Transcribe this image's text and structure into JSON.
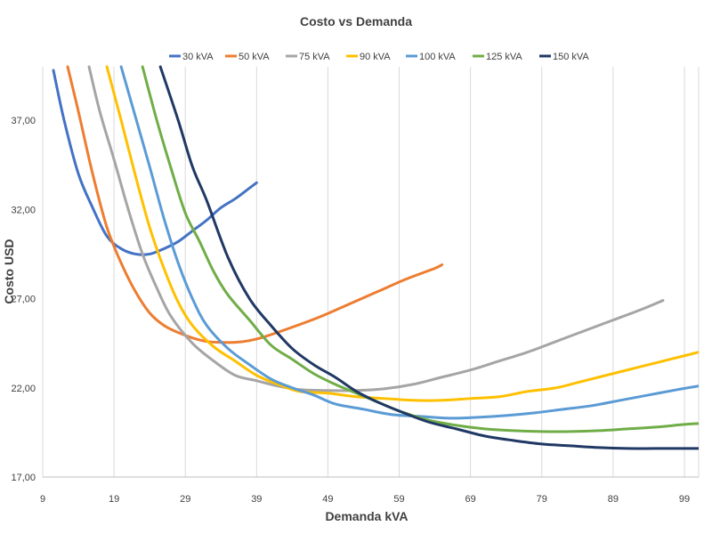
{
  "chart_data": {
    "type": "line",
    "title": "Costo vs Demanda",
    "xlabel": "Demanda kVA",
    "ylabel": "Costo USD",
    "xlim": [
      9,
      101
    ],
    "ylim": [
      17,
      40
    ],
    "x_ticks": [
      "9",
      "19",
      "29",
      "39",
      "49",
      "59",
      "69",
      "79",
      "89",
      "99"
    ],
    "y_ticks": [
      "17,00",
      "22,00",
      "27,00",
      "32,00",
      "37,00"
    ],
    "grid": "vertical",
    "legend_position": "top",
    "series": [
      {
        "name": "30 kVA",
        "color": "#4472C4",
        "points": [
          [
            10.5,
            39.8
          ],
          [
            12,
            37
          ],
          [
            14,
            34
          ],
          [
            16,
            32.1
          ],
          [
            18,
            30.5
          ],
          [
            20,
            29.8
          ],
          [
            22,
            29.5
          ],
          [
            24,
            29.5
          ],
          [
            26,
            29.8
          ],
          [
            28,
            30.2
          ],
          [
            30,
            30.8
          ],
          [
            32,
            31.4
          ],
          [
            34,
            32.1
          ],
          [
            36,
            32.6
          ],
          [
            38,
            33.2
          ],
          [
            39,
            33.5
          ]
        ]
      },
      {
        "name": "50 kVA",
        "color": "#ED7D31",
        "points": [
          [
            12.5,
            40
          ],
          [
            14,
            37.5
          ],
          [
            16,
            34
          ],
          [
            18,
            31
          ],
          [
            20,
            29
          ],
          [
            22,
            27.4
          ],
          [
            24,
            26.2
          ],
          [
            26,
            25.5
          ],
          [
            28,
            25.1
          ],
          [
            30,
            24.8
          ],
          [
            32,
            24.6
          ],
          [
            34,
            24.55
          ],
          [
            36,
            24.55
          ],
          [
            38,
            24.65
          ],
          [
            40,
            24.85
          ],
          [
            44,
            25.4
          ],
          [
            48,
            26
          ],
          [
            52,
            26.7
          ],
          [
            56,
            27.4
          ],
          [
            60,
            28.1
          ],
          [
            64,
            28.7
          ],
          [
            65,
            28.9
          ]
        ]
      },
      {
        "name": "75 kVA",
        "color": "#A5A5A5",
        "points": [
          [
            15.5,
            40
          ],
          [
            17,
            37.5
          ],
          [
            19,
            34.8
          ],
          [
            21,
            32
          ],
          [
            23,
            29.5
          ],
          [
            25,
            27.6
          ],
          [
            27,
            26
          ],
          [
            30,
            24.5
          ],
          [
            33,
            23.5
          ],
          [
            36,
            22.7
          ],
          [
            39,
            22.4
          ],
          [
            42,
            22.1
          ],
          [
            45,
            21.9
          ],
          [
            49,
            21.85
          ],
          [
            53,
            21.85
          ],
          [
            57,
            21.95
          ],
          [
            61,
            22.2
          ],
          [
            65,
            22.6
          ],
          [
            69,
            23
          ],
          [
            73,
            23.5
          ],
          [
            77,
            24
          ],
          [
            81,
            24.6
          ],
          [
            85,
            25.2
          ],
          [
            89,
            25.8
          ],
          [
            93,
            26.4
          ],
          [
            96,
            26.9
          ]
        ]
      },
      {
        "name": "90 kVA",
        "color": "#FFC000",
        "points": [
          [
            18,
            40
          ],
          [
            20,
            37
          ],
          [
            22,
            33.9
          ],
          [
            24,
            31
          ],
          [
            26,
            28.7
          ],
          [
            28,
            26.8
          ],
          [
            30,
            25.5
          ],
          [
            33,
            24.3
          ],
          [
            36,
            23.5
          ],
          [
            39,
            22.7
          ],
          [
            42,
            22.2
          ],
          [
            45,
            21.8
          ],
          [
            49,
            21.7
          ],
          [
            53,
            21.5
          ],
          [
            57,
            21.4
          ],
          [
            61,
            21.3
          ],
          [
            65,
            21.3
          ],
          [
            69,
            21.4
          ],
          [
            73,
            21.5
          ],
          [
            77,
            21.8
          ],
          [
            81,
            22
          ],
          [
            85,
            22.4
          ],
          [
            89,
            22.8
          ],
          [
            93,
            23.2
          ],
          [
            97,
            23.6
          ],
          [
            101,
            24
          ]
        ]
      },
      {
        "name": "100 kVA",
        "color": "#5B9BD5",
        "points": [
          [
            20,
            40
          ],
          [
            22,
            37.2
          ],
          [
            24,
            34.4
          ],
          [
            26,
            31.5
          ],
          [
            28,
            29
          ],
          [
            30,
            27
          ],
          [
            32,
            25.5
          ],
          [
            35,
            24.2
          ],
          [
            38,
            23.3
          ],
          [
            41,
            22.5
          ],
          [
            44,
            22
          ],
          [
            47,
            21.6
          ],
          [
            50,
            21.1
          ],
          [
            54,
            20.8
          ],
          [
            58,
            20.5
          ],
          [
            62,
            20.4
          ],
          [
            66,
            20.3
          ],
          [
            70,
            20.35
          ],
          [
            74,
            20.45
          ],
          [
            78,
            20.6
          ],
          [
            82,
            20.8
          ],
          [
            86,
            21
          ],
          [
            90,
            21.3
          ],
          [
            94,
            21.6
          ],
          [
            98,
            21.9
          ],
          [
            101,
            22.1
          ]
        ]
      },
      {
        "name": "125 kVA",
        "color": "#70AD47",
        "points": [
          [
            23,
            40
          ],
          [
            25,
            37
          ],
          [
            27,
            34.3
          ],
          [
            29,
            31.8
          ],
          [
            31,
            30.2
          ],
          [
            33,
            28.5
          ],
          [
            35,
            27.2
          ],
          [
            38,
            25.8
          ],
          [
            41,
            24.4
          ],
          [
            44,
            23.6
          ],
          [
            47,
            22.8
          ],
          [
            50,
            22.2
          ],
          [
            53,
            21.7
          ],
          [
            56,
            21.2
          ],
          [
            59,
            20.7
          ],
          [
            63,
            20.2
          ],
          [
            67,
            19.9
          ],
          [
            71,
            19.7
          ],
          [
            75,
            19.6
          ],
          [
            79,
            19.55
          ],
          [
            83,
            19.55
          ],
          [
            87,
            19.6
          ],
          [
            91,
            19.7
          ],
          [
            95,
            19.8
          ],
          [
            99,
            19.95
          ],
          [
            101,
            20
          ]
        ]
      },
      {
        "name": "150 kVA",
        "color": "#203864",
        "points": [
          [
            25.5,
            40
          ],
          [
            28,
            37
          ],
          [
            30,
            34.4
          ],
          [
            32,
            32.5
          ],
          [
            35,
            29.3
          ],
          [
            38,
            27
          ],
          [
            41,
            25.5
          ],
          [
            44,
            24.2
          ],
          [
            47,
            23.3
          ],
          [
            50,
            22.6
          ],
          [
            53,
            21.8
          ],
          [
            56,
            21.2
          ],
          [
            59,
            20.7
          ],
          [
            63,
            20.1
          ],
          [
            67,
            19.7
          ],
          [
            71,
            19.3
          ],
          [
            75,
            19.05
          ],
          [
            79,
            18.85
          ],
          [
            83,
            18.75
          ],
          [
            87,
            18.65
          ],
          [
            91,
            18.6
          ],
          [
            95,
            18.6
          ],
          [
            99,
            18.6
          ],
          [
            101,
            18.6
          ]
        ]
      }
    ]
  }
}
